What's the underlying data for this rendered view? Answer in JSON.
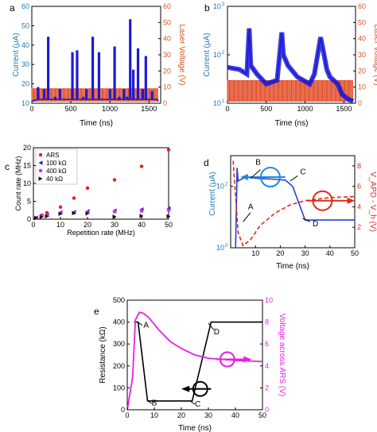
{
  "chart_data": [
    {
      "panel": "a",
      "type": "line",
      "xlabel": "Time (ns)",
      "ylabel": "Current (μA)",
      "y2label": "Laser Voltage (V)",
      "xlim": [
        0,
        1650
      ],
      "ylim": [
        10,
        60
      ],
      "y2lim": [
        0,
        60
      ],
      "xticks": [
        "0",
        "500",
        "1000",
        "1500"
      ],
      "yticks": [
        "10",
        "20",
        "30",
        "40",
        "50",
        "60"
      ],
      "y2ticks": [
        "0",
        "10",
        "20",
        "30",
        "40",
        "50",
        "60"
      ],
      "colors": {
        "current": "#1a1ad6",
        "laser": "#e0461f",
        "label": "#1f77b4",
        "label2": "#d9541e"
      },
      "series": [
        {
          "axis": "left",
          "x": [
            0,
            80,
            120,
            160,
            210,
            300,
            360,
            460,
            520,
            580,
            660,
            700,
            780,
            860,
            920,
            1000,
            1060,
            1120,
            1180,
            1220,
            1260,
            1300,
            1360,
            1420,
            1460,
            1540,
            1600
          ],
          "values": [
            11,
            18,
            12,
            17,
            44,
            13,
            17,
            12,
            36,
            37,
            13,
            17,
            44,
            36,
            12,
            17,
            39,
            13,
            17,
            13,
            53,
            27,
            38,
            17,
            34,
            16,
            12
          ]
        },
        {
          "axis": "right",
          "pulse_period": 25,
          "pulse_high": 9,
          "pulse_low": 1
        }
      ]
    },
    {
      "panel": "b",
      "type": "line",
      "xlabel": "Time (ns)",
      "ylabel": "Current (μA)",
      "y2label": "Laser Voltage (V)",
      "xlim": [
        0,
        1650
      ],
      "ylim": [
        10,
        1000
      ],
      "yscale": "log",
      "y2lim": [
        0,
        60
      ],
      "xticks": [
        "0",
        "500",
        "1000",
        "1500"
      ],
      "yticks": [
        "10",
        "10",
        "10"
      ],
      "ytick_exps": [
        "1",
        "2",
        "3"
      ],
      "y2ticks": [
        "0",
        "10",
        "20",
        "30",
        "40",
        "50",
        "60"
      ],
      "series": [
        {
          "axis": "left",
          "x": [
            0,
            150,
            250,
            280,
            300,
            380,
            500,
            640,
            700,
            720,
            780,
            900,
            1060,
            1120,
            1200,
            1250,
            1280,
            1320,
            1420,
            1480,
            1560,
            1620
          ],
          "values": [
            55,
            50,
            40,
            350,
            60,
            40,
            25,
            30,
            290,
            100,
            60,
            35,
            25,
            40,
            230,
            90,
            50,
            35,
            25,
            15,
            12,
            11
          ]
        },
        {
          "axis": "right",
          "pulse_period": 25,
          "pulse_high": 14,
          "pulse_low": 1
        }
      ]
    },
    {
      "panel": "c",
      "type": "scatter",
      "xlabel": "Repetition rate (MHz)",
      "ylabel": "Count rate (MHz)",
      "xlim": [
        0,
        50
      ],
      "ylim": [
        0,
        20
      ],
      "xticks": [
        "0",
        "10",
        "20",
        "30",
        "40",
        "50"
      ],
      "yticks": [
        "0",
        "5",
        "10",
        "15",
        "20"
      ],
      "legend_position": "top-left",
      "series": [
        {
          "name": "ARS",
          "marker": "circle",
          "color": "#e8201c",
          "x": [
            1,
            3,
            5,
            10,
            15,
            20,
            30,
            40,
            50
          ],
          "values": [
            0.4,
            1.1,
            1.8,
            3.4,
            5.9,
            8.7,
            11.0,
            14.8,
            19.4
          ]
        },
        {
          "name": "100 kΩ",
          "marker": "triangle-left",
          "color": "#2020e0",
          "x": [
            1,
            3,
            5,
            10,
            15,
            20,
            30,
            40,
            50
          ],
          "values": [
            0.4,
            1.0,
            1.2,
            1.9,
            2.0,
            2.2,
            2.4,
            2.7,
            3.0
          ]
        },
        {
          "name": "400 kΩ",
          "marker": "circle",
          "color": "#e61fe6",
          "x": [
            1,
            3,
            5,
            10,
            15,
            20,
            30,
            40,
            50
          ],
          "values": [
            0.4,
            0.9,
            1.1,
            1.7,
            1.8,
            1.9,
            2.1,
            2.3,
            2.5
          ]
        },
        {
          "name": "40 kΩ",
          "marker": "triangle-right",
          "color": "#111111",
          "x": [
            1,
            3,
            5,
            10,
            15,
            20,
            30,
            40,
            50
          ],
          "values": [
            0.3,
            0.6,
            0.8,
            1.5,
            1.7,
            1.6,
            0.7,
            0.9,
            0.8
          ]
        }
      ]
    },
    {
      "panel": "d",
      "type": "line",
      "xlabel": "Time (ns)",
      "ylabel": "Current (μA)",
      "y2label": "V_APD - V_h (V)",
      "xlim": [
        0,
        50
      ],
      "ylim": [
        1,
        1000
      ],
      "yscale": "log",
      "y2lim": [
        0,
        9
      ],
      "xticks": [
        "10",
        "20",
        "30",
        "40",
        "50"
      ],
      "yticks": [
        "10",
        "10"
      ],
      "ytick_exps": [
        "0",
        "2"
      ],
      "y2ticks": [
        "2",
        "4",
        "6",
        "8"
      ],
      "annotations": [
        "A",
        "B",
        "C",
        "D"
      ],
      "series": [
        {
          "axis": "left",
          "color": "#2040d8",
          "x": [
            2,
            2.6,
            3,
            6,
            12,
            18,
            22,
            25,
            30,
            50
          ],
          "values": [
            1,
            400,
            150,
            200,
            180,
            170,
            160,
            100,
            8,
            8
          ]
        },
        {
          "axis": "right",
          "color": "#e02818",
          "dash": true,
          "x": [
            1,
            2,
            3,
            5,
            8,
            12,
            18,
            24,
            30,
            40,
            50
          ],
          "values": [
            8.5,
            5,
            1.5,
            0.2,
            0.8,
            2.2,
            3.4,
            4.2,
            4.6,
            4.9,
            5
          ]
        }
      ]
    },
    {
      "panel": "e",
      "type": "line",
      "xlabel": "Time (ns)",
      "ylabel": "Resistance (kΩ)",
      "y2label": "Voltage across ARS (V)",
      "xlim": [
        0,
        50
      ],
      "ylim": [
        0,
        500
      ],
      "y2lim": [
        0,
        10
      ],
      "xticks": [
        "0",
        "10",
        "20",
        "30",
        "40",
        "50"
      ],
      "yticks": [
        "0",
        "100",
        "200",
        "300",
        "400",
        "500"
      ],
      "y2ticks": [
        "0",
        "2",
        "4",
        "6",
        "8",
        "10"
      ],
      "annotations": [
        "A",
        "B",
        "C",
        "D"
      ],
      "series": [
        {
          "axis": "left",
          "color": "#000000",
          "x": [
            2.5,
            4,
            7.5,
            24,
            31,
            50
          ],
          "values": [
            400,
            400,
            40,
            40,
            400,
            400
          ]
        },
        {
          "axis": "right",
          "color": "#e61fe6",
          "x": [
            0,
            2,
            3,
            4.5,
            6,
            8,
            12,
            16,
            20,
            25,
            30,
            40,
            50
          ],
          "values": [
            0,
            3,
            8.2,
            8.9,
            8.8,
            8.4,
            7.2,
            6.2,
            5.6,
            5.0,
            4.7,
            4.5,
            4.4
          ]
        }
      ]
    }
  ],
  "panel_labels": [
    "a",
    "b",
    "c",
    "d",
    "e"
  ]
}
